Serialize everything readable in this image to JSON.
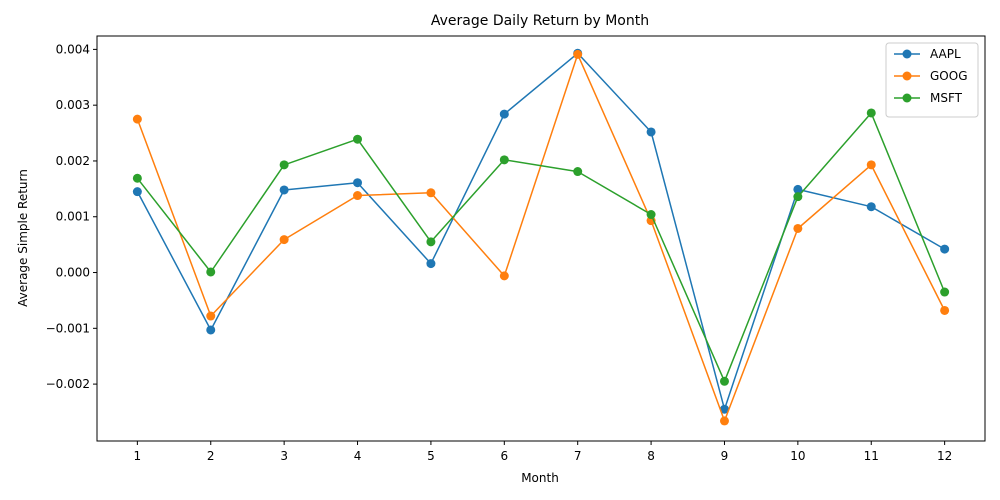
{
  "chart_data": {
    "type": "line",
    "title": "Average Daily Return by Month",
    "xlabel": "Month",
    "ylabel": "Average Simple Return",
    "x": [
      1,
      2,
      3,
      4,
      5,
      6,
      7,
      8,
      9,
      10,
      11,
      12
    ],
    "xlim": [
      0.45,
      12.55
    ],
    "ylim": [
      -0.00302,
      0.00424
    ],
    "yticks": [
      -0.002,
      -0.001,
      0.0,
      0.001,
      0.002,
      0.003,
      0.004
    ],
    "ytick_labels": [
      "−0.002",
      "−0.001",
      "0.000",
      "0.001",
      "0.002",
      "0.003",
      "0.004"
    ],
    "grid": false,
    "legend_position": "top-right",
    "series": [
      {
        "name": "AAPL",
        "color": "#1f77b4",
        "values": [
          0.00145,
          -0.00103,
          0.00148,
          0.00161,
          0.00016,
          0.00284,
          0.00393,
          0.00252,
          -0.00245,
          0.00149,
          0.00118,
          0.00042
        ]
      },
      {
        "name": "GOOG",
        "color": "#ff7f0e",
        "values": [
          0.00275,
          -0.00078,
          0.00059,
          0.00138,
          0.00143,
          -6e-05,
          0.00391,
          0.00093,
          -0.00266,
          0.00079,
          0.00193,
          -0.00068
        ]
      },
      {
        "name": "MSFT",
        "color": "#2ca02c",
        "values": [
          0.00169,
          1e-05,
          0.00193,
          0.00239,
          0.00055,
          0.00202,
          0.00181,
          0.00104,
          -0.00195,
          0.00136,
          0.00286,
          -0.00035
        ]
      }
    ]
  }
}
